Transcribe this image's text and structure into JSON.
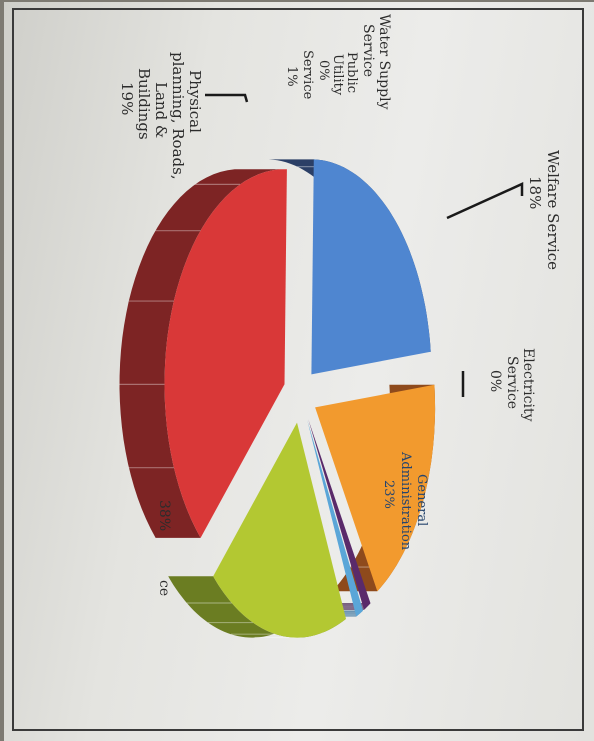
{
  "chart_data": {
    "type": "pie",
    "title": "",
    "slices": [
      {
        "label": "General Administration",
        "value": 23,
        "display": "23%",
        "color": "#4f86d0",
        "side": "#2b3f66"
      },
      {
        "label": "Electricity Service",
        "value": 0,
        "display": "0%",
        "color": "#ffffff",
        "side": "#ffffff"
      },
      {
        "label": "Welfare Service",
        "value": 18,
        "display": "18%",
        "color": "#f29a2e",
        "side": "#8e4a1c"
      },
      {
        "label": "Public Utility Service",
        "value": 1,
        "display": "1%",
        "color": "#5a2a6a",
        "side": "#3a1848"
      },
      {
        "label": "Water Supply Service",
        "value": 1,
        "display": "1%",
        "color": "#5aa6d8",
        "side": "#2c6690"
      },
      {
        "label": "Physical planning, Roads, Land & Buildings",
        "value": 19,
        "display": "19%",
        "color": "#b3c832",
        "side": "#6b7d22"
      },
      {
        "label": "",
        "value": 38,
        "display": "38%",
        "color": "#d93838",
        "side": "#7d2424"
      }
    ],
    "labels": {
      "general_admin": [
        "General",
        "Administration",
        "23%"
      ],
      "electricity": [
        "Electricity",
        "Service",
        "0%"
      ],
      "welfare": [
        "Welfare Service",
        "18%"
      ],
      "water_supply": [
        "Water Supply",
        "Service"
      ],
      "public_utility": [
        "Public",
        "Utility",
        "0%",
        "Service",
        "1%"
      ],
      "physical": [
        "Physical",
        "planning, Roads,",
        "Land &",
        "Buildings",
        "19%"
      ],
      "red_pct": "38%",
      "red_fragment": "ce"
    }
  }
}
